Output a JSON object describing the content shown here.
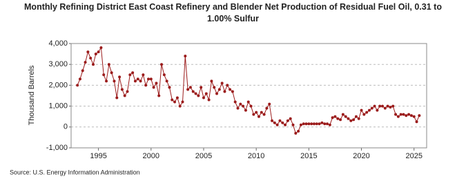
{
  "chart_data": {
    "type": "line",
    "title": "Monthly Refining District East Coast Refinery and Blender Net Production of Residual Fuel Oil, 0.31 to 1.00% Sulfur",
    "y_label": "Thousand Barrels",
    "source": "Source: U.S. Energy Information Administration",
    "x": [
      1993,
      1993.25,
      1993.5,
      1993.75,
      1994,
      1994.25,
      1994.5,
      1994.75,
      1995,
      1995.25,
      1995.5,
      1995.75,
      1996,
      1996.25,
      1996.5,
      1996.75,
      1997,
      1997.25,
      1997.5,
      1997.75,
      1998,
      1998.25,
      1998.5,
      1998.75,
      1999,
      1999.25,
      1999.5,
      1999.75,
      2000,
      2000.25,
      2000.5,
      2000.75,
      2001,
      2001.25,
      2001.5,
      2001.75,
      2002,
      2002.25,
      2002.5,
      2002.75,
      2003,
      2003.25,
      2003.5,
      2003.75,
      2004,
      2004.25,
      2004.5,
      2004.75,
      2005,
      2005.25,
      2005.5,
      2005.75,
      2006,
      2006.25,
      2006.5,
      2006.75,
      2007,
      2007.25,
      2007.5,
      2007.75,
      2008,
      2008.25,
      2008.5,
      2008.75,
      2009,
      2009.25,
      2009.5,
      2009.75,
      2010,
      2010.25,
      2010.5,
      2010.75,
      2011,
      2011.25,
      2011.5,
      2011.75,
      2012,
      2012.25,
      2012.5,
      2012.75,
      2013,
      2013.25,
      2013.5,
      2013.75,
      2014,
      2014.25,
      2014.5,
      2014.75,
      2015,
      2015.25,
      2015.5,
      2015.75,
      2016,
      2016.25,
      2016.5,
      2016.75,
      2017,
      2017.25,
      2017.5,
      2017.75,
      2018,
      2018.25,
      2018.5,
      2018.75,
      2019,
      2019.25,
      2019.5,
      2019.75,
      2020,
      2020.25,
      2020.5,
      2020.75,
      2021,
      2021.25,
      2021.5,
      2021.75,
      2022,
      2022.25,
      2022.5,
      2022.75,
      2023,
      2023.25,
      2023.5,
      2023.75,
      2024,
      2024.25,
      2024.5,
      2024.75,
      2025,
      2025.25,
      2025.5
    ],
    "series": [
      {
        "name": "Residual Fuel Oil, 0.31 to 1.00% Sulfur",
        "color": "#9b1b1b",
        "values": [
          2000,
          2300,
          2700,
          3100,
          3600,
          3300,
          3000,
          3500,
          3600,
          3800,
          2500,
          2200,
          3000,
          2600,
          2200,
          1400,
          2400,
          1800,
          1500,
          1700,
          2500,
          2600,
          2200,
          2300,
          2200,
          2500,
          2000,
          2300,
          2300,
          1900,
          2100,
          1500,
          3000,
          2500,
          2200,
          1900,
          1300,
          1200,
          1400,
          1000,
          1200,
          3400,
          1800,
          1900,
          1700,
          1600,
          1500,
          1900,
          1400,
          1600,
          1300,
          2200,
          1900,
          1600,
          1800,
          2100,
          1700,
          2000,
          1800,
          1700,
          1200,
          900,
          1100,
          1000,
          800,
          1200,
          1000,
          600,
          700,
          500,
          700,
          600,
          900,
          1100,
          300,
          200,
          100,
          300,
          200,
          100,
          300,
          400,
          100,
          -300,
          -200,
          100,
          150,
          150,
          150,
          150,
          150,
          150,
          150,
          200,
          150,
          150,
          100,
          450,
          500,
          400,
          350,
          600,
          500,
          400,
          300,
          350,
          500,
          400,
          800,
          600,
          700,
          800,
          900,
          1000,
          800,
          1000,
          1000,
          900,
          1000,
          950,
          1000,
          600,
          500,
          600,
          600,
          550,
          600,
          550,
          500,
          250,
          550
        ]
      }
    ],
    "xlim": [
      1992.4,
      2026.2
    ],
    "xticks": [
      1995,
      2000,
      2005,
      2010,
      2015,
      2020,
      2025
    ],
    "ylim": [
      -1000,
      4000
    ],
    "yticks": [
      {
        "value": -1000,
        "label": "-1,000"
      },
      0,
      {
        "value": 1000,
        "label": "1,000"
      },
      {
        "value": 2000,
        "label": "2,000"
      },
      {
        "value": 3000,
        "label": "3,000"
      },
      {
        "value": 4000,
        "label": "4,000"
      }
    ],
    "grid": true
  }
}
